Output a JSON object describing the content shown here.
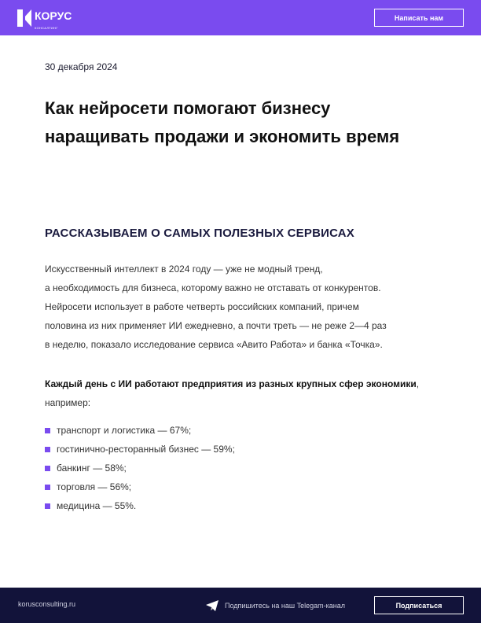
{
  "header": {
    "logo_text": "КОРУС",
    "logo_sub": "КОНСАЛТИНГ",
    "cta_label": "Написать нам",
    "brand_color": "#7a4bef"
  },
  "article": {
    "date": "30 декабря 2024",
    "title": "Как нейросети помогают бизнесу наращивать продажи и экономить время",
    "subheading": "РАССКАЗЫВАЕМ О САМЫХ ПОЛЕЗНЫХ СЕРВИСАХ",
    "paragraph_lines": [
      "Искусственный интеллект в 2024 году — уже не модный тренд,",
      "а необходимость для бизнеса, которому важно не отставать от конкурентов.",
      "Нейросети использует в работе четверть российских компаний, причем",
      "половина из них применяет ИИ ежедневно, а почти треть — не реже 2—4 раз",
      "в неделю, показало исследование сервиса «Авито Работа» и банка «Точка»."
    ],
    "lead_bold": "Каждый день с ИИ работают предприятия из разных крупных сфер экономики",
    "lead_rest": ", например:",
    "bullets": [
      "транспорт и логистика — 67%;",
      "гостинично-ресторанный бизнес — 59%;",
      "банкинг — 58%;",
      "торговля — 56%;",
      "медицина — 55%."
    ]
  },
  "footer": {
    "site": "korusconsulting.ru",
    "telegram_text": "Подпишитесь на наш Telegam-канал",
    "subscribe_label": "Подписаться",
    "bg_color": "#12133a",
    "icon": "telegram-icon"
  }
}
